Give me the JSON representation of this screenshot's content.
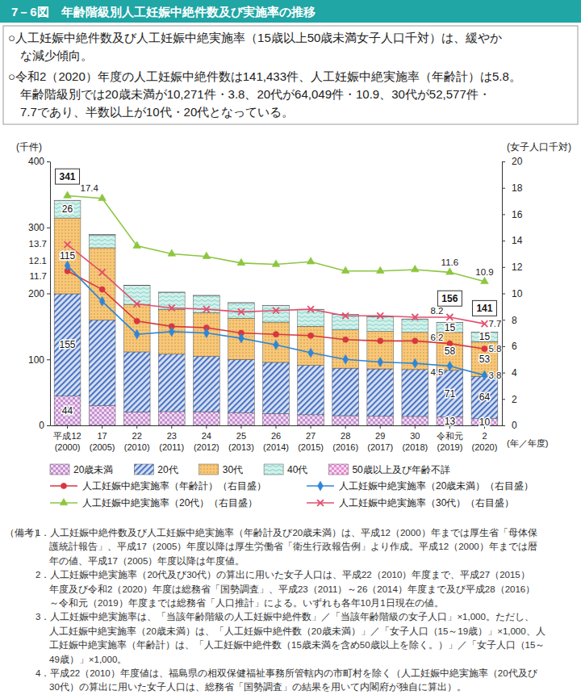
{
  "chart_data": {
    "type": "bar",
    "title": "7－6図　年齢階級別人工妊娠中絶件数及び実施率の推移",
    "summary": [
      [
        "○人工妊娠中絶件数及び人工妊娠中絶実施率（15歳以上50歳未満女子人口千対）は、緩やか",
        "な減少傾向。"
      ],
      [
        "○令和2（2020）年度の人工妊娠中絶件数は141,433件、人工妊娠中絶実施率（年齢計）は5.8。",
        "年齢階級別では20歳未満が10,271件・3.8、20代が64,049件・10.9、30代が52,577件・",
        "7.7であり、半数以上が10代・20代となっている。"
      ]
    ],
    "y_label": "(千件)",
    "y2_label": "(女子人口千対)",
    "x_label": "(年／年度)",
    "categories": [
      "平成12\n(2000)",
      "17\n(2005)",
      "22\n(2010)",
      "23\n(2011)",
      "24\n(2012)",
      "25\n(2013)",
      "26\n(2014)",
      "27\n(2015)",
      "28\n(2016)",
      "29\n(2017)",
      "30\n(2018)",
      "令和元\n(2019)",
      "2\n(2020)"
    ],
    "ylim": [
      0,
      400
    ],
    "yticks": [
      0,
      100,
      200,
      300,
      400
    ],
    "y2lim": [
      0,
      20
    ],
    "y2ticks": [
      0,
      2,
      4,
      6,
      8,
      10,
      12,
      14,
      16,
      18,
      20
    ],
    "stacked": true,
    "grid": false,
    "legend": "bottom",
    "series": [
      {
        "name": "20歳未満",
        "type": "bar",
        "color": "#c58ed0",
        "values": [
          44.4,
          30.1,
          20.4,
          20.9,
          20.7,
          19.4,
          18.0,
          16.1,
          14.7,
          14.1,
          13.6,
          12.7,
          10.3
        ],
        "value_labels": [
          "44",
          null,
          null,
          null,
          null,
          null,
          null,
          null,
          null,
          null,
          null,
          "13",
          "10"
        ]
      },
      {
        "name": "20代",
        "type": "bar",
        "color": "#4a74c4",
        "values": [
          155.0,
          129.5,
          91.0,
          87.0,
          84.0,
          80.5,
          77.5,
          75.0,
          72.0,
          71.5,
          71.0,
          70.7,
          64.0
        ],
        "value_labels": [
          "155",
          null,
          null,
          null,
          null,
          null,
          null,
          null,
          null,
          null,
          null,
          "71",
          "64"
        ]
      },
      {
        "name": "30代",
        "type": "bar",
        "color": "#f6b955",
        "values": [
          114.9,
          109.5,
          72.0,
          68.0,
          66.0,
          62.5,
          61.0,
          59.0,
          58.0,
          57.0,
          56.5,
          57.5,
          52.6
        ],
        "value_labels": [
          "115",
          null,
          null,
          null,
          null,
          null,
          null,
          null,
          null,
          null,
          null,
          "58",
          "53"
        ]
      },
      {
        "name": "40代",
        "type": "bar",
        "color": "#7fd3c6",
        "values": [
          26.3,
          19.5,
          28.5,
          25.8,
          26.1,
          23.4,
          25.3,
          25.7,
          23.2,
          22.2,
          20.0,
          15.3,
          14.5
        ],
        "value_labels": [
          "26",
          null,
          null,
          null,
          null,
          null,
          null,
          null,
          null,
          null,
          null,
          "15",
          "15"
        ]
      },
      {
        "name": "50歳以上及び年齢不詳",
        "type": "bar",
        "color": "#e58bd0",
        "values": [
          0.5,
          0.5,
          0.2,
          0.2,
          0.2,
          0.2,
          0.2,
          0.2,
          0.2,
          0.2,
          0.2,
          0.1,
          0.04
        ]
      },
      {
        "name": "人工妊娠中絶実施率（年齢計）（右目盛）",
        "type": "line",
        "axis": "y2",
        "color": "#d7373f",
        "marker": "circle",
        "values": [
          11.7,
          10.3,
          7.9,
          7.5,
          7.4,
          7.0,
          6.9,
          6.8,
          6.5,
          6.4,
          6.4,
          6.2,
          5.8
        ],
        "value_labels": [
          "11.7",
          null,
          null,
          null,
          null,
          null,
          null,
          null,
          null,
          null,
          null,
          "6.2",
          "5.8"
        ]
      },
      {
        "name": "人工妊娠中絶実施率（20歳未満）（右目盛）",
        "type": "line",
        "axis": "y2",
        "color": "#2f86d6",
        "marker": "diamond",
        "values": [
          12.1,
          9.4,
          6.9,
          7.1,
          7.0,
          6.6,
          6.1,
          5.5,
          5.0,
          4.8,
          4.7,
          4.5,
          3.8
        ],
        "value_labels": [
          "12.1",
          null,
          null,
          null,
          null,
          null,
          null,
          null,
          null,
          null,
          null,
          "4.5",
          "3.8"
        ]
      },
      {
        "name": "人工妊娠中絶実施率（20代）（右目盛）",
        "type": "line",
        "axis": "y2",
        "color": "#8cc63f",
        "marker": "triangle",
        "values": [
          17.4,
          17.2,
          13.6,
          13.0,
          12.8,
          12.3,
          12.2,
          12.4,
          11.7,
          11.7,
          11.8,
          11.6,
          10.9
        ],
        "value_labels": [
          "17.4",
          null,
          null,
          null,
          null,
          null,
          null,
          null,
          null,
          null,
          null,
          "11.6",
          "10.9"
        ]
      },
      {
        "name": "人工妊娠中絶実施率（30代）（右目盛）",
        "type": "line",
        "axis": "y2",
        "color": "#e0506e",
        "marker": "x",
        "values": [
          13.7,
          11.6,
          9.2,
          8.9,
          8.8,
          8.6,
          8.7,
          8.8,
          8.3,
          8.3,
          8.2,
          8.2,
          7.7
        ],
        "value_labels": [
          "13.7",
          null,
          null,
          null,
          null,
          null,
          null,
          null,
          null,
          null,
          null,
          "8.2",
          "7.7"
        ]
      }
    ],
    "annotations": [
      {
        "text": "341",
        "category": 0
      },
      {
        "text": "156",
        "category": 11
      },
      {
        "text": "141",
        "category": 12
      }
    ],
    "notes_label": "（備考）",
    "notes": [
      [
        "1．人工妊娠中絶件数及び人工妊娠中絶実施率（年齢計及び20歳未満）は、平成12（2000）年までは厚生省「母体保",
        "護統計報告」、平成17（2005）年度以降は厚生労働省「衛生行政報告例」より作成。平成12（2000）年までは暦",
        "年の値、平成17（2005）年度以降は年度値。"
      ],
      [
        "2．人工妊娠中絶実施率（20代及び30代）の算出に用いた女子人口は、平成22（2010）年度まで、平成27（2015）",
        "年度及び令和2（2020）年度は総務省「国勢調査」、平成23（2011）～26（2014）年度まで及び平成28（2016）",
        "～令和元（2019）年度までは総務省「人口推計」による。いずれも各年10月1日現在の値。"
      ],
      [
        "3．人工妊娠中絶実施率は、「当該年齢階級の人工妊娠中絶件数」／「当該年齢階級の女子人口」×1,000。ただし、",
        "人工妊娠中絶実施率（20歳未満）は、「人工妊娠中絶件数（20歳未満）」／「女子人口（15～19歳）」×1,000、人",
        "工妊娠中絶実施率（年齢計）は、「人工妊娠中絶件数（15歳未満を含め50歳以上を除く。）」／「女子人口（15～",
        "49歳）」×1,000。"
      ],
      [
        "4．平成22（2010）年度値は、福島県の相双保健福祉事務所管轄内の市町村を除く（人工妊娠中絶実施率（20代及び",
        "30代）の算出に用いた女子人口は、総務省「国勢調査」の結果を用いて内閣府が独自に算出）。"
      ]
    ]
  }
}
